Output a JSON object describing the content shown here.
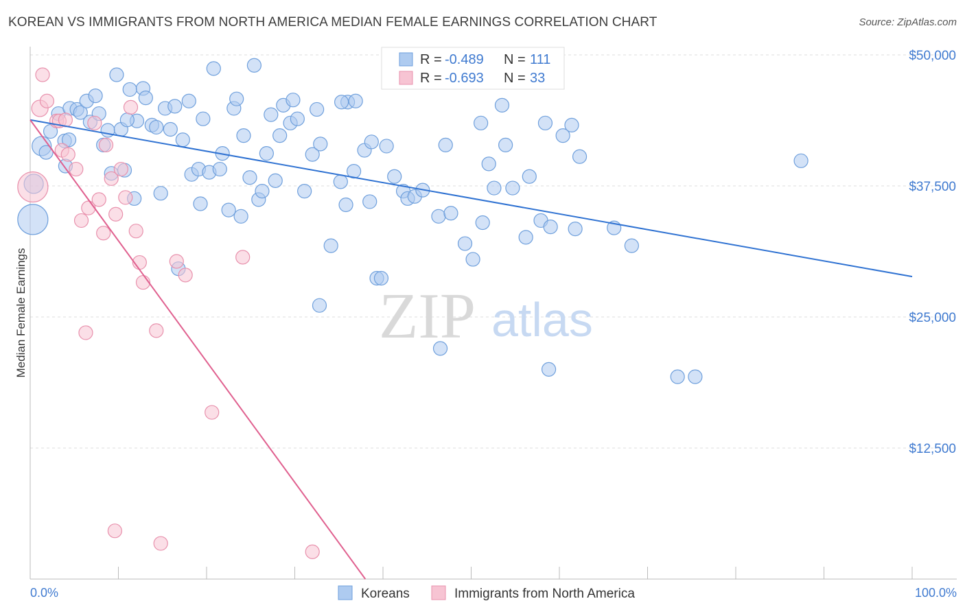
{
  "header": {
    "title": "KOREAN VS IMMIGRANTS FROM NORTH AMERICA MEDIAN FEMALE EARNINGS CORRELATION CHART",
    "source": "Source: ZipAtlas.com"
  },
  "watermark": {
    "zip": "ZIP",
    "atlas": "atlas"
  },
  "legend": {
    "r_label": "R =",
    "n_label": "N =",
    "rows": [
      {
        "r": "-0.489",
        "n": "111"
      },
      {
        "r": "-0.693",
        "n": "33"
      }
    ]
  },
  "colors": {
    "blue_fill": "#aecbf0",
    "blue_stroke": "#6e9fdc",
    "blue_line": "#2f72d2",
    "pink_fill": "#f7c4d3",
    "pink_stroke": "#e890ac",
    "pink_line": "#e0608f",
    "grid": "#dddddd",
    "tick_text": "#3f7ad0"
  },
  "chart_data": {
    "type": "scatter",
    "ylabel": "Median Female Earnings",
    "xlim": [
      0,
      100
    ],
    "ylim": [
      0,
      50000
    ],
    "x_tick_labels": [
      "0.0%",
      "100.0%"
    ],
    "y_ticks": [
      12500,
      25000,
      37500,
      50000
    ],
    "y_tick_labels": [
      "$12,500",
      "$25,000",
      "$37,500",
      "$50,000"
    ],
    "grid": true,
    "legend_position": "top-center",
    "series": [
      {
        "name": "Koreans",
        "color": "#6e9fdc",
        "trend": {
          "x": [
            0,
            100
          ],
          "y": [
            43800,
            28850
          ]
        },
        "points": [
          [
            0.3,
            34300,
            22
          ],
          [
            0.4,
            37700,
            14
          ],
          [
            1.3,
            41300,
            14
          ],
          [
            1.8,
            40700,
            10
          ],
          [
            2.3,
            42700,
            10
          ],
          [
            3.2,
            44400,
            10
          ],
          [
            3.9,
            41800,
            10
          ],
          [
            4.0,
            39400,
            10
          ],
          [
            4.4,
            41900,
            10
          ],
          [
            4.5,
            44900,
            10
          ],
          [
            5.3,
            44800,
            10
          ],
          [
            5.7,
            44500,
            10
          ],
          [
            6.4,
            45600,
            10
          ],
          [
            6.8,
            43600,
            10
          ],
          [
            7.4,
            46100,
            10
          ],
          [
            7.8,
            44400,
            10
          ],
          [
            8.3,
            41400,
            10
          ],
          [
            8.8,
            42800,
            10
          ],
          [
            9.2,
            38700,
            10
          ],
          [
            9.8,
            48100,
            10
          ],
          [
            10.3,
            42900,
            10
          ],
          [
            10.7,
            39000,
            10
          ],
          [
            11.3,
            46700,
            10
          ],
          [
            11.8,
            36300,
            10
          ],
          [
            12.1,
            43700,
            10
          ],
          [
            12.8,
            46800,
            10
          ],
          [
            13.1,
            45900,
            10
          ],
          [
            13.8,
            43300,
            10
          ],
          [
            14.3,
            43100,
            10
          ],
          [
            14.8,
            36800,
            10
          ],
          [
            15.3,
            44900,
            10
          ],
          [
            15.9,
            42900,
            10
          ],
          [
            16.4,
            45100,
            10
          ],
          [
            16.8,
            29600,
            10
          ],
          [
            17.3,
            41900,
            10
          ],
          [
            18.0,
            45600,
            10
          ],
          [
            18.3,
            38600,
            10
          ],
          [
            19.1,
            39100,
            10
          ],
          [
            19.3,
            35800,
            10
          ],
          [
            19.6,
            43900,
            10
          ],
          [
            20.3,
            38800,
            10
          ],
          [
            20.8,
            48700,
            10
          ],
          [
            21.5,
            39100,
            10
          ],
          [
            21.8,
            40600,
            10
          ],
          [
            22.5,
            35200,
            10
          ],
          [
            23.1,
            44900,
            10
          ],
          [
            23.4,
            45800,
            10
          ],
          [
            23.9,
            34600,
            10
          ],
          [
            24.2,
            42300,
            10
          ],
          [
            24.9,
            38300,
            10
          ],
          [
            25.4,
            49000,
            10
          ],
          [
            25.9,
            36200,
            10
          ],
          [
            26.3,
            37000,
            10
          ],
          [
            26.8,
            40600,
            10
          ],
          [
            27.3,
            44300,
            10
          ],
          [
            27.8,
            38000,
            10
          ],
          [
            28.3,
            42300,
            10
          ],
          [
            28.7,
            45200,
            10
          ],
          [
            29.5,
            43500,
            10
          ],
          [
            29.8,
            45700,
            10
          ],
          [
            30.3,
            43900,
            10
          ],
          [
            31.1,
            37000,
            10
          ],
          [
            32.0,
            40500,
            10
          ],
          [
            32.5,
            44800,
            10
          ],
          [
            32.9,
            41500,
            10
          ],
          [
            34.1,
            31800,
            10
          ],
          [
            35.2,
            37900,
            10
          ],
          [
            35.8,
            35700,
            10
          ],
          [
            36.0,
            45500,
            10
          ],
          [
            36.9,
            45600,
            10
          ],
          [
            36.7,
            38900,
            10
          ],
          [
            37.9,
            40900,
            10
          ],
          [
            38.5,
            36000,
            10
          ],
          [
            38.7,
            41700,
            10
          ],
          [
            39.3,
            28700,
            10
          ],
          [
            39.8,
            28700,
            10
          ],
          [
            40.4,
            41300,
            10
          ],
          [
            41.3,
            38400,
            10
          ],
          [
            42.3,
            37000,
            10
          ],
          [
            42.8,
            36300,
            10
          ],
          [
            43.6,
            36500,
            10
          ],
          [
            44.5,
            37100,
            10
          ],
          [
            46.3,
            34600,
            10
          ],
          [
            46.5,
            22000,
            10
          ],
          [
            47.1,
            41400,
            10
          ],
          [
            47.7,
            34900,
            10
          ],
          [
            49.3,
            32000,
            10
          ],
          [
            50.2,
            30500,
            10
          ],
          [
            51.1,
            43500,
            10
          ],
          [
            51.3,
            34000,
            10
          ],
          [
            52.0,
            39600,
            10
          ],
          [
            52.6,
            37300,
            10
          ],
          [
            53.5,
            45200,
            10
          ],
          [
            53.9,
            41400,
            10
          ],
          [
            54.7,
            37300,
            10
          ],
          [
            56.2,
            32600,
            10
          ],
          [
            56.6,
            38400,
            10
          ],
          [
            57.9,
            34200,
            10
          ],
          [
            58.4,
            43500,
            10
          ],
          [
            58.8,
            20000,
            10
          ],
          [
            59.0,
            33600,
            10
          ],
          [
            60.4,
            42300,
            10
          ],
          [
            61.4,
            43300,
            10
          ],
          [
            61.8,
            33400,
            10
          ],
          [
            62.3,
            40300,
            10
          ],
          [
            66.2,
            33500,
            10
          ],
          [
            68.2,
            31800,
            10
          ],
          [
            73.4,
            19300,
            10
          ],
          [
            75.4,
            19300,
            10
          ],
          [
            87.4,
            39900,
            10
          ],
          [
            32.8,
            26100,
            10
          ],
          [
            35.3,
            45500,
            10
          ],
          [
            11.0,
            43800,
            10
          ]
        ]
      },
      {
        "name": "Immigrants from North America",
        "color": "#e890ac",
        "trend": {
          "x": [
            0,
            38.0
          ],
          "y": [
            43800,
            0
          ]
        },
        "points": [
          [
            0.3,
            37400,
            22
          ],
          [
            1.1,
            44900,
            12
          ],
          [
            1.4,
            48100,
            10
          ],
          [
            1.9,
            45600,
            10
          ],
          [
            3.0,
            43700,
            10
          ],
          [
            3.3,
            43700,
            10
          ],
          [
            3.6,
            40900,
            10
          ],
          [
            4.0,
            43800,
            10
          ],
          [
            4.3,
            40500,
            10
          ],
          [
            5.2,
            39100,
            10
          ],
          [
            5.8,
            34200,
            10
          ],
          [
            6.3,
            23500,
            10
          ],
          [
            6.6,
            35400,
            10
          ],
          [
            7.3,
            43500,
            10
          ],
          [
            7.8,
            36200,
            10
          ],
          [
            8.3,
            33000,
            10
          ],
          [
            8.6,
            41400,
            10
          ],
          [
            9.2,
            38200,
            10
          ],
          [
            9.7,
            34800,
            10
          ],
          [
            9.6,
            4600,
            10
          ],
          [
            10.3,
            39100,
            10
          ],
          [
            10.8,
            36400,
            10
          ],
          [
            11.4,
            45000,
            10
          ],
          [
            12.0,
            33200,
            10
          ],
          [
            12.4,
            30200,
            10
          ],
          [
            12.8,
            28300,
            10
          ],
          [
            14.3,
            23700,
            10
          ],
          [
            14.8,
            3400,
            10
          ],
          [
            16.6,
            30300,
            10
          ],
          [
            17.6,
            29000,
            10
          ],
          [
            20.6,
            15900,
            10
          ],
          [
            24.1,
            30700,
            10
          ],
          [
            32.0,
            2600,
            10
          ]
        ]
      }
    ]
  }
}
